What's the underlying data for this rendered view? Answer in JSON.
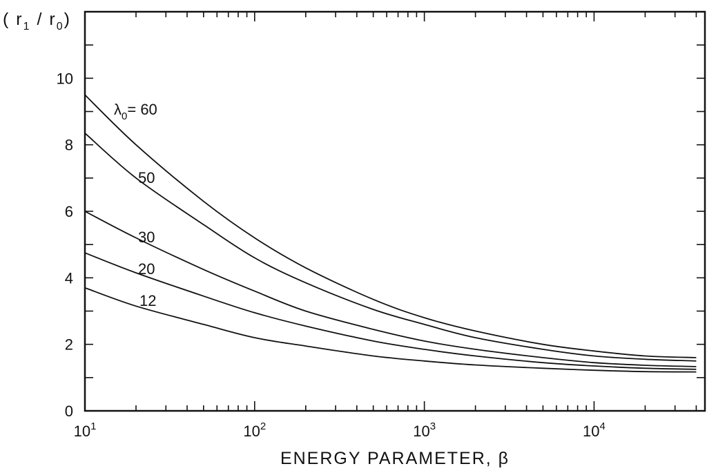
{
  "chart_data": {
    "type": "line",
    "title": "",
    "ylabel": "( r",
    "ylabel_sub1": "1",
    "ylabel_mid": " / r",
    "ylabel_sub0": "0",
    "ylabel_end": ")",
    "xlabel": "ENERGY PARAMETER, β",
    "x_scale": "log",
    "xlim": [
      10,
      45000
    ],
    "ylim": [
      0,
      12
    ],
    "x_ticks": [
      {
        "value": 10,
        "base": "10",
        "exp": "1"
      },
      {
        "value": 100,
        "base": "10",
        "exp": "2"
      },
      {
        "value": 1000,
        "base": "10",
        "exp": "3"
      },
      {
        "value": 10000,
        "base": "10",
        "exp": "4"
      }
    ],
    "y_ticks": [
      {
        "value": 0,
        "label": "0"
      },
      {
        "value": 2,
        "label": "2"
      },
      {
        "value": 4,
        "label": "4"
      },
      {
        "value": 6,
        "label": "6"
      },
      {
        "value": 8,
        "label": "8"
      },
      {
        "value": 10,
        "label": "10"
      }
    ],
    "label_prefix": "λ",
    "label_prefix_sub": "0",
    "label_prefix_eq": "= ",
    "x": [
      10,
      20,
      50,
      100,
      200,
      500,
      1000,
      2000,
      5000,
      10000,
      20000,
      40000
    ],
    "series": [
      {
        "name": "60",
        "values": [
          9.5,
          8.0,
          6.3,
          5.2,
          4.3,
          3.35,
          2.8,
          2.4,
          2.0,
          1.8,
          1.65,
          1.6
        ]
      },
      {
        "name": "50",
        "values": [
          8.35,
          7.0,
          5.6,
          4.6,
          3.85,
          3.05,
          2.6,
          2.2,
          1.85,
          1.65,
          1.55,
          1.5
        ]
      },
      {
        "name": "30",
        "values": [
          6.0,
          5.2,
          4.25,
          3.6,
          3.0,
          2.45,
          2.1,
          1.85,
          1.6,
          1.45,
          1.37,
          1.33
        ]
      },
      {
        "name": "20",
        "values": [
          4.75,
          4.15,
          3.45,
          2.95,
          2.55,
          2.1,
          1.85,
          1.65,
          1.45,
          1.35,
          1.28,
          1.25
        ]
      },
      {
        "name": "12",
        "values": [
          3.7,
          3.15,
          2.6,
          2.2,
          1.95,
          1.65,
          1.5,
          1.38,
          1.28,
          1.22,
          1.18,
          1.17
        ]
      }
    ]
  }
}
